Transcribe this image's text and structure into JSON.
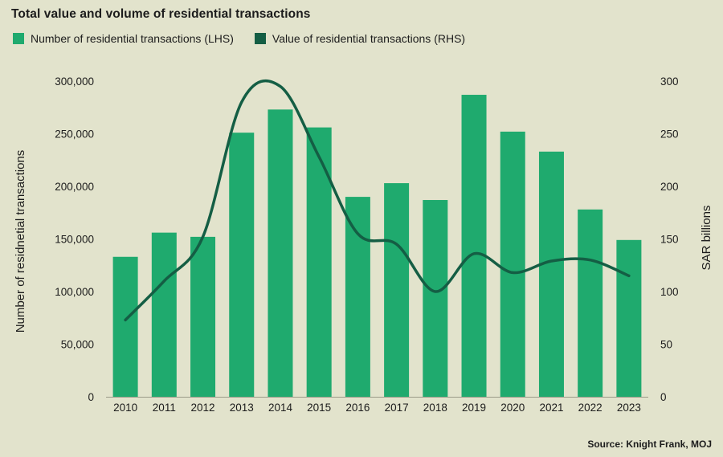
{
  "title": "Total value and volume of residential transactions",
  "source": "Source: Knight Frank, MOJ",
  "colors": {
    "bars": "#1faa6e",
    "line": "#145e44",
    "background": "#e2e3cc",
    "text": "#1c1c1c"
  },
  "chart_data": {
    "type": "bar",
    "title": "Total value and volume of residential transactions",
    "categories": [
      "2010",
      "2011",
      "2012",
      "2013",
      "2014",
      "2015",
      "2016",
      "2017",
      "2018",
      "2019",
      "2020",
      "2021",
      "2022",
      "2023"
    ],
    "series": [
      {
        "name": "Number of residential transactions (LHS)",
        "type": "bar",
        "axis": "left",
        "values": [
          133000,
          156000,
          152000,
          251000,
          273000,
          256000,
          190000,
          203000,
          187000,
          287000,
          252000,
          233000,
          178000,
          149000
        ]
      },
      {
        "name": "Value of residential transactions (RHS)",
        "type": "line",
        "axis": "right",
        "values": [
          73,
          110,
          152,
          280,
          295,
          228,
          155,
          145,
          100,
          136,
          118,
          129,
          130,
          115
        ]
      }
    ],
    "ylabel_left": "Number of residnetial transactions",
    "ylabel_right": "SAR billions",
    "ylim_left": [
      0,
      300000
    ],
    "ylim_right": [
      0,
      300
    ],
    "yticks_left": [
      "0",
      "50,000",
      "100,000",
      "150,000",
      "200,000",
      "250,000",
      "300,000"
    ],
    "yticks_right": [
      "0",
      "50",
      "100",
      "150",
      "200",
      "250",
      "300"
    ],
    "grid": false,
    "legend": "top-left"
  }
}
